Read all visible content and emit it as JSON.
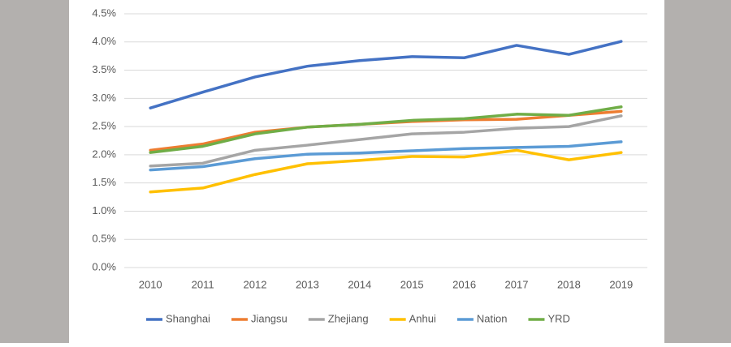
{
  "chart_data": {
    "type": "line",
    "categories": [
      "2010",
      "2011",
      "2012",
      "2013",
      "2014",
      "2015",
      "2016",
      "2017",
      "2018",
      "2019"
    ],
    "series": [
      {
        "name": "Shanghai",
        "color": "#4472c4",
        "values": [
          2.83,
          3.11,
          3.38,
          3.57,
          3.67,
          3.74,
          3.72,
          3.94,
          3.78,
          4.01
        ]
      },
      {
        "name": "Jiangsu",
        "color": "#ed7d31",
        "values": [
          2.08,
          2.19,
          2.4,
          2.49,
          2.54,
          2.59,
          2.62,
          2.63,
          2.7,
          2.77
        ]
      },
      {
        "name": "Zhejiang",
        "color": "#a5a5a5",
        "values": [
          1.8,
          1.85,
          2.08,
          2.17,
          2.27,
          2.37,
          2.4,
          2.47,
          2.5,
          2.69
        ]
      },
      {
        "name": "Anhui",
        "color": "#ffc000",
        "values": [
          1.34,
          1.41,
          1.65,
          1.84,
          1.9,
          1.97,
          1.96,
          2.08,
          1.91,
          2.04
        ]
      },
      {
        "name": "Nation",
        "color": "#5b9bd5",
        "values": [
          1.73,
          1.79,
          1.93,
          2.01,
          2.03,
          2.07,
          2.11,
          2.13,
          2.15,
          2.23
        ]
      },
      {
        "name": "YRD",
        "color": "#70ad47",
        "values": [
          2.04,
          2.15,
          2.37,
          2.49,
          2.54,
          2.61,
          2.64,
          2.72,
          2.7,
          2.85
        ]
      }
    ],
    "ylim": [
      0,
      4.5
    ],
    "yticks": [
      {
        "value": 0,
        "label": "0.0%"
      },
      {
        "value": 0.5,
        "label": "0.5%"
      },
      {
        "value": 1,
        "label": "1.0%"
      },
      {
        "value": 1.5,
        "label": "1.5%"
      },
      {
        "value": 2,
        "label": "2.0%"
      },
      {
        "value": 2.5,
        "label": "2.5%"
      },
      {
        "value": 3,
        "label": "3.0%"
      },
      {
        "value": 3.5,
        "label": "3.5%"
      },
      {
        "value": 4,
        "label": "4.0%"
      },
      {
        "value": 4.5,
        "label": "4.5%"
      }
    ],
    "grid": true,
    "legend": "bottom"
  }
}
